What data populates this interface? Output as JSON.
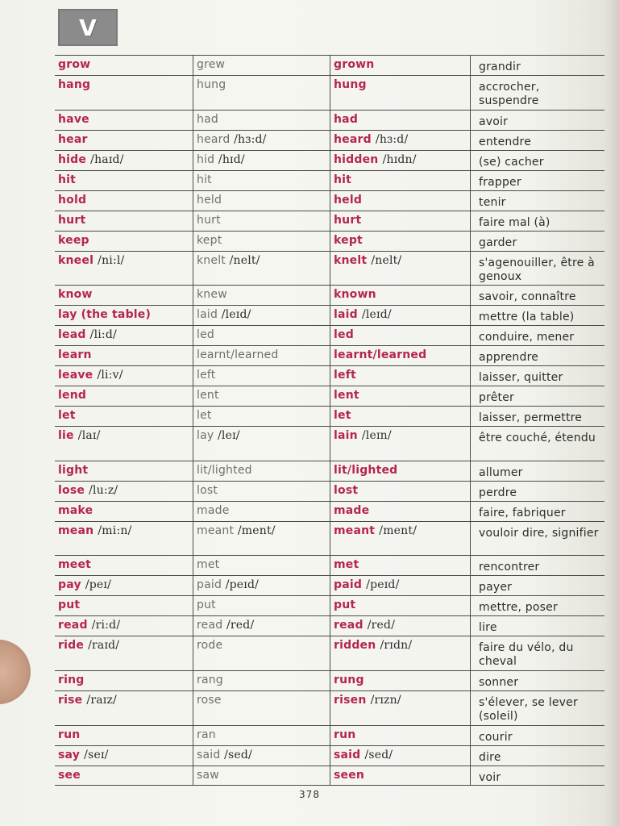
{
  "header": {
    "letter": "V"
  },
  "rows": [
    {
      "base": "grow",
      "base_ph": "",
      "past": "grew",
      "past_ph": "",
      "pp": "grown",
      "pp_ph": "",
      "fr": "grandir"
    },
    {
      "base": "hang",
      "base_ph": "",
      "past": "hung",
      "past_ph": "",
      "pp": "hung",
      "pp_ph": "",
      "fr": "accrocher, suspendre"
    },
    {
      "base": "have",
      "base_ph": "",
      "past": "had",
      "past_ph": "",
      "pp": "had",
      "pp_ph": "",
      "fr": "avoir"
    },
    {
      "base": "hear",
      "base_ph": "",
      "past": "heard",
      "past_ph": "/hɜ:d/",
      "pp": "heard",
      "pp_ph": "/hɜ:d/",
      "fr": "entendre"
    },
    {
      "base": "hide",
      "base_ph": "/haɪd/",
      "past": "hid",
      "past_ph": "/hɪd/",
      "pp": "hidden",
      "pp_ph": "/hɪdn/",
      "fr": "(se) cacher"
    },
    {
      "base": "hit",
      "base_ph": "",
      "past": "hit",
      "past_ph": "",
      "pp": "hit",
      "pp_ph": "",
      "fr": "frapper"
    },
    {
      "base": "hold",
      "base_ph": "",
      "past": "held",
      "past_ph": "",
      "pp": "held",
      "pp_ph": "",
      "fr": "tenir"
    },
    {
      "base": "hurt",
      "base_ph": "",
      "past": "hurt",
      "past_ph": "",
      "pp": "hurt",
      "pp_ph": "",
      "fr": "faire mal (à)"
    },
    {
      "base": "keep",
      "base_ph": "",
      "past": "kept",
      "past_ph": "",
      "pp": "kept",
      "pp_ph": "",
      "fr": "garder"
    },
    {
      "base": "kneel",
      "base_ph": "/ni:l/",
      "past": "knelt",
      "past_ph": "/nelt/",
      "pp": "knelt",
      "pp_ph": "/nelt/",
      "fr": "s'agenouiller, être à genoux"
    },
    {
      "base": "know",
      "base_ph": "",
      "past": "knew",
      "past_ph": "",
      "pp": "known",
      "pp_ph": "",
      "fr": "savoir, connaître"
    },
    {
      "base": "lay (the table)",
      "base_ph": "",
      "past": "laid",
      "past_ph": "/leɪd/",
      "pp": "laid",
      "pp_ph": "/leɪd/",
      "fr": "mettre (la table)"
    },
    {
      "base": "lead",
      "base_ph": "/li:d/",
      "past": "led",
      "past_ph": "",
      "pp": "led",
      "pp_ph": "",
      "fr": "conduire, mener"
    },
    {
      "base": "learn",
      "base_ph": "",
      "past": "learnt/learned",
      "past_ph": "",
      "pp": "learnt/learned",
      "pp_ph": "",
      "fr": "apprendre"
    },
    {
      "base": "leave",
      "base_ph": "/li:v/",
      "past": "left",
      "past_ph": "",
      "pp": "left",
      "pp_ph": "",
      "fr": "laisser, quitter"
    },
    {
      "base": "lend",
      "base_ph": "",
      "past": "lent",
      "past_ph": "",
      "pp": "lent",
      "pp_ph": "",
      "fr": "prêter"
    },
    {
      "base": "let",
      "base_ph": "",
      "past": "let",
      "past_ph": "",
      "pp": "let",
      "pp_ph": "",
      "fr": "laisser, permettre"
    },
    {
      "base": "lie",
      "base_ph": "/laɪ/",
      "past": "lay",
      "past_ph": "/leɪ/",
      "pp": "lain",
      "pp_ph": "/leɪn/",
      "fr": "être couché, étendu"
    },
    {
      "base": "light",
      "base_ph": "",
      "past": "lit/lighted",
      "past_ph": "",
      "pp": "lit/lighted",
      "pp_ph": "",
      "fr": "allumer"
    },
    {
      "base": "lose",
      "base_ph": "/lu:z/",
      "past": "lost",
      "past_ph": "",
      "pp": "lost",
      "pp_ph": "",
      "fr": "perdre"
    },
    {
      "base": "make",
      "base_ph": "",
      "past": "made",
      "past_ph": "",
      "pp": "made",
      "pp_ph": "",
      "fr": "faire, fabriquer"
    },
    {
      "base": "mean",
      "base_ph": "/mi:n/",
      "past": "meant",
      "past_ph": "/ment/",
      "pp": "meant",
      "pp_ph": "/ment/",
      "fr": "vouloir dire, signifier"
    },
    {
      "base": "meet",
      "base_ph": "",
      "past": "met",
      "past_ph": "",
      "pp": "met",
      "pp_ph": "",
      "fr": "rencontrer"
    },
    {
      "base": "pay",
      "base_ph": "/peɪ/",
      "past": "paid",
      "past_ph": "/peɪd/",
      "pp": "paid",
      "pp_ph": "/peɪd/",
      "fr": "payer"
    },
    {
      "base": "put",
      "base_ph": "",
      "past": "put",
      "past_ph": "",
      "pp": "put",
      "pp_ph": "",
      "fr": "mettre, poser"
    },
    {
      "base": "read",
      "base_ph": "/ri:d/",
      "past": "read",
      "past_ph": "/red/",
      "pp": "read",
      "pp_ph": "/red/",
      "fr": "lire"
    },
    {
      "base": "ride",
      "base_ph": "/raɪd/",
      "past": "rode",
      "past_ph": "",
      "pp": "ridden",
      "pp_ph": "/rɪdn/",
      "fr": "faire du vélo, du cheval"
    },
    {
      "base": "ring",
      "base_ph": "",
      "past": "rang",
      "past_ph": "",
      "pp": "rung",
      "pp_ph": "",
      "fr": "sonner"
    },
    {
      "base": "rise",
      "base_ph": "/raɪz/",
      "past": "rose",
      "past_ph": "",
      "pp": "risen",
      "pp_ph": "/rɪzn/",
      "fr": "s'élever, se lever (soleil)"
    },
    {
      "base": "run",
      "base_ph": "",
      "past": "ran",
      "past_ph": "",
      "pp": "run",
      "pp_ph": "",
      "fr": "courir"
    },
    {
      "base": "say",
      "base_ph": "/seɪ/",
      "past": "said",
      "past_ph": "/sed/",
      "pp": "said",
      "pp_ph": "/sed/",
      "fr": "dire"
    },
    {
      "base": "see",
      "base_ph": "",
      "past": "saw",
      "past_ph": "",
      "pp": "seen",
      "pp_ph": "",
      "fr": "voir"
    }
  ],
  "footer": {
    "page_number": "378"
  }
}
